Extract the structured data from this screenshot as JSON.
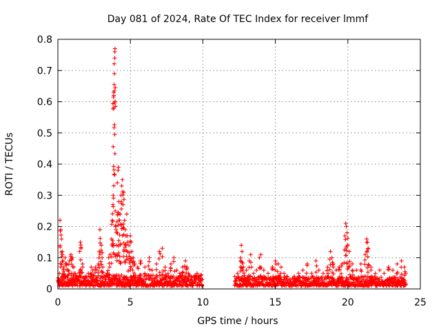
{
  "chart_data": {
    "type": "scatter",
    "title": "Day 081 of 2024, Rate Of TEC Index for receiver lmmf",
    "xlabel": "GPS time / hours",
    "ylabel": "ROTI / TECUs",
    "xlim": [
      0,
      25
    ],
    "ylim": [
      0,
      0.8
    ],
    "xticks": [
      0,
      5,
      10,
      15,
      20,
      25
    ],
    "yticks": [
      0,
      0.1,
      0.2,
      0.3,
      0.4,
      0.5,
      0.6,
      0.7,
      0.8
    ],
    "marker": "plus",
    "color": "#ff0000",
    "grid": true,
    "series": [
      {
        "name": "ROTI",
        "points": [
          [
            0.05,
            0.02
          ],
          [
            0.1,
            0.05
          ],
          [
            0.15,
            0.22
          ],
          [
            0.2,
            0.19
          ],
          [
            0.25,
            0.16
          ],
          [
            0.3,
            0.12
          ],
          [
            0.35,
            0.09
          ],
          [
            0.4,
            0.07
          ],
          [
            0.5,
            0.1
          ],
          [
            0.6,
            0.08
          ],
          [
            0.7,
            0.06
          ],
          [
            0.8,
            0.09
          ],
          [
            0.9,
            0.11
          ],
          [
            1.0,
            0.1
          ],
          [
            1.1,
            0.07
          ],
          [
            1.2,
            0.05
          ],
          [
            1.3,
            0.04
          ],
          [
            1.5,
            0.12
          ],
          [
            1.55,
            0.15
          ],
          [
            1.6,
            0.13
          ],
          [
            1.7,
            0.08
          ],
          [
            1.9,
            0.04
          ],
          [
            2.1,
            0.05
          ],
          [
            2.3,
            0.07
          ],
          [
            2.4,
            0.06
          ],
          [
            2.6,
            0.07
          ],
          [
            2.7,
            0.06
          ],
          [
            2.8,
            0.08
          ],
          [
            2.85,
            0.12
          ],
          [
            2.9,
            0.19
          ],
          [
            3.0,
            0.14
          ],
          [
            3.05,
            0.1
          ],
          [
            3.1,
            0.07
          ],
          [
            3.2,
            0.04
          ],
          [
            3.4,
            0.05
          ],
          [
            3.5,
            0.1
          ],
          [
            3.6,
            0.11
          ],
          [
            3.7,
            0.16
          ],
          [
            3.75,
            0.22
          ],
          [
            3.8,
            0.27
          ],
          [
            3.82,
            0.3
          ],
          [
            3.85,
            0.63
          ],
          [
            3.86,
            0.62
          ],
          [
            3.88,
            0.655
          ],
          [
            3.9,
            0.69
          ],
          [
            3.92,
            0.74
          ],
          [
            3.93,
            0.76
          ],
          [
            3.94,
            0.77
          ],
          [
            3.95,
            0.25
          ],
          [
            4.0,
            0.2
          ],
          [
            4.05,
            0.14
          ],
          [
            4.1,
            0.34
          ],
          [
            4.15,
            0.38
          ],
          [
            4.18,
            0.39
          ],
          [
            4.2,
            0.28
          ],
          [
            4.25,
            0.22
          ],
          [
            4.3,
            0.24
          ],
          [
            4.35,
            0.3
          ],
          [
            4.4,
            0.33
          ],
          [
            4.45,
            0.35
          ],
          [
            4.5,
            0.27
          ],
          [
            4.55,
            0.31
          ],
          [
            4.6,
            0.22
          ],
          [
            4.65,
            0.19
          ],
          [
            4.7,
            0.17
          ],
          [
            4.75,
            0.24
          ],
          [
            4.8,
            0.15
          ],
          [
            4.9,
            0.14
          ],
          [
            5.0,
            0.17
          ],
          [
            5.05,
            0.15
          ],
          [
            5.1,
            0.12
          ],
          [
            5.2,
            0.1
          ],
          [
            5.3,
            0.08
          ],
          [
            5.5,
            0.07
          ],
          [
            5.7,
            0.09
          ],
          [
            6.0,
            0.07
          ],
          [
            6.3,
            0.1
          ],
          [
            6.5,
            0.06
          ],
          [
            6.8,
            0.08
          ],
          [
            7.0,
            0.12
          ],
          [
            7.2,
            0.13
          ],
          [
            7.4,
            0.07
          ],
          [
            7.6,
            0.05
          ],
          [
            7.8,
            0.08
          ],
          [
            8.0,
            0.1
          ],
          [
            8.2,
            0.06
          ],
          [
            8.4,
            0.05
          ],
          [
            8.6,
            0.07
          ],
          [
            8.8,
            0.09
          ],
          [
            8.9,
            0.07
          ],
          [
            9.0,
            0.05
          ],
          [
            9.2,
            0.03
          ],
          [
            9.4,
            0.04
          ],
          [
            9.6,
            0.05
          ],
          [
            9.8,
            0.04
          ],
          [
            9.95,
            0.03
          ],
          [
            12.2,
            0.04
          ],
          [
            12.4,
            0.05
          ],
          [
            12.6,
            0.09
          ],
          [
            12.65,
            0.14
          ],
          [
            12.7,
            0.12
          ],
          [
            12.8,
            0.07
          ],
          [
            13.0,
            0.06
          ],
          [
            13.2,
            0.09
          ],
          [
            13.3,
            0.11
          ],
          [
            13.5,
            0.05
          ],
          [
            13.7,
            0.06
          ],
          [
            13.9,
            0.1
          ],
          [
            14.0,
            0.11
          ],
          [
            14.2,
            0.06
          ],
          [
            14.5,
            0.05
          ],
          [
            14.8,
            0.07
          ],
          [
            15.0,
            0.09
          ],
          [
            15.2,
            0.08
          ],
          [
            15.4,
            0.07
          ],
          [
            15.6,
            0.05
          ],
          [
            15.8,
            0.04
          ],
          [
            16.0,
            0.03
          ],
          [
            16.3,
            0.04
          ],
          [
            16.6,
            0.05
          ],
          [
            16.9,
            0.06
          ],
          [
            17.2,
            0.08
          ],
          [
            17.5,
            0.05
          ],
          [
            17.8,
            0.09
          ],
          [
            18.0,
            0.06
          ],
          [
            18.3,
            0.05
          ],
          [
            18.6,
            0.07
          ],
          [
            18.8,
            0.12
          ],
          [
            18.9,
            0.1
          ],
          [
            19.0,
            0.08
          ],
          [
            19.2,
            0.06
          ],
          [
            19.4,
            0.07
          ],
          [
            19.6,
            0.08
          ],
          [
            19.8,
            0.17
          ],
          [
            19.85,
            0.21
          ],
          [
            19.9,
            0.2
          ],
          [
            19.95,
            0.18
          ],
          [
            20.0,
            0.14
          ],
          [
            20.1,
            0.12
          ],
          [
            20.3,
            0.08
          ],
          [
            20.6,
            0.06
          ],
          [
            20.9,
            0.08
          ],
          [
            21.2,
            0.11
          ],
          [
            21.3,
            0.16
          ],
          [
            21.35,
            0.15
          ],
          [
            21.4,
            0.13
          ],
          [
            21.6,
            0.07
          ],
          [
            21.9,
            0.05
          ],
          [
            22.2,
            0.06
          ],
          [
            22.5,
            0.05
          ],
          [
            22.8,
            0.07
          ],
          [
            23.1,
            0.06
          ],
          [
            23.4,
            0.08
          ],
          [
            23.7,
            0.09
          ],
          [
            23.9,
            0.07
          ],
          [
            24.0,
            0.05
          ]
        ]
      }
    ],
    "band": {
      "comment": "dense low-level ROTI values forming the baseline cloud",
      "segments": [
        {
          "x": [
            0,
            9.95
          ],
          "base": [
            0.01,
            0.045
          ]
        },
        {
          "x": [
            12.2,
            24.0
          ],
          "base": [
            0.01,
            0.04
          ]
        }
      ]
    }
  }
}
